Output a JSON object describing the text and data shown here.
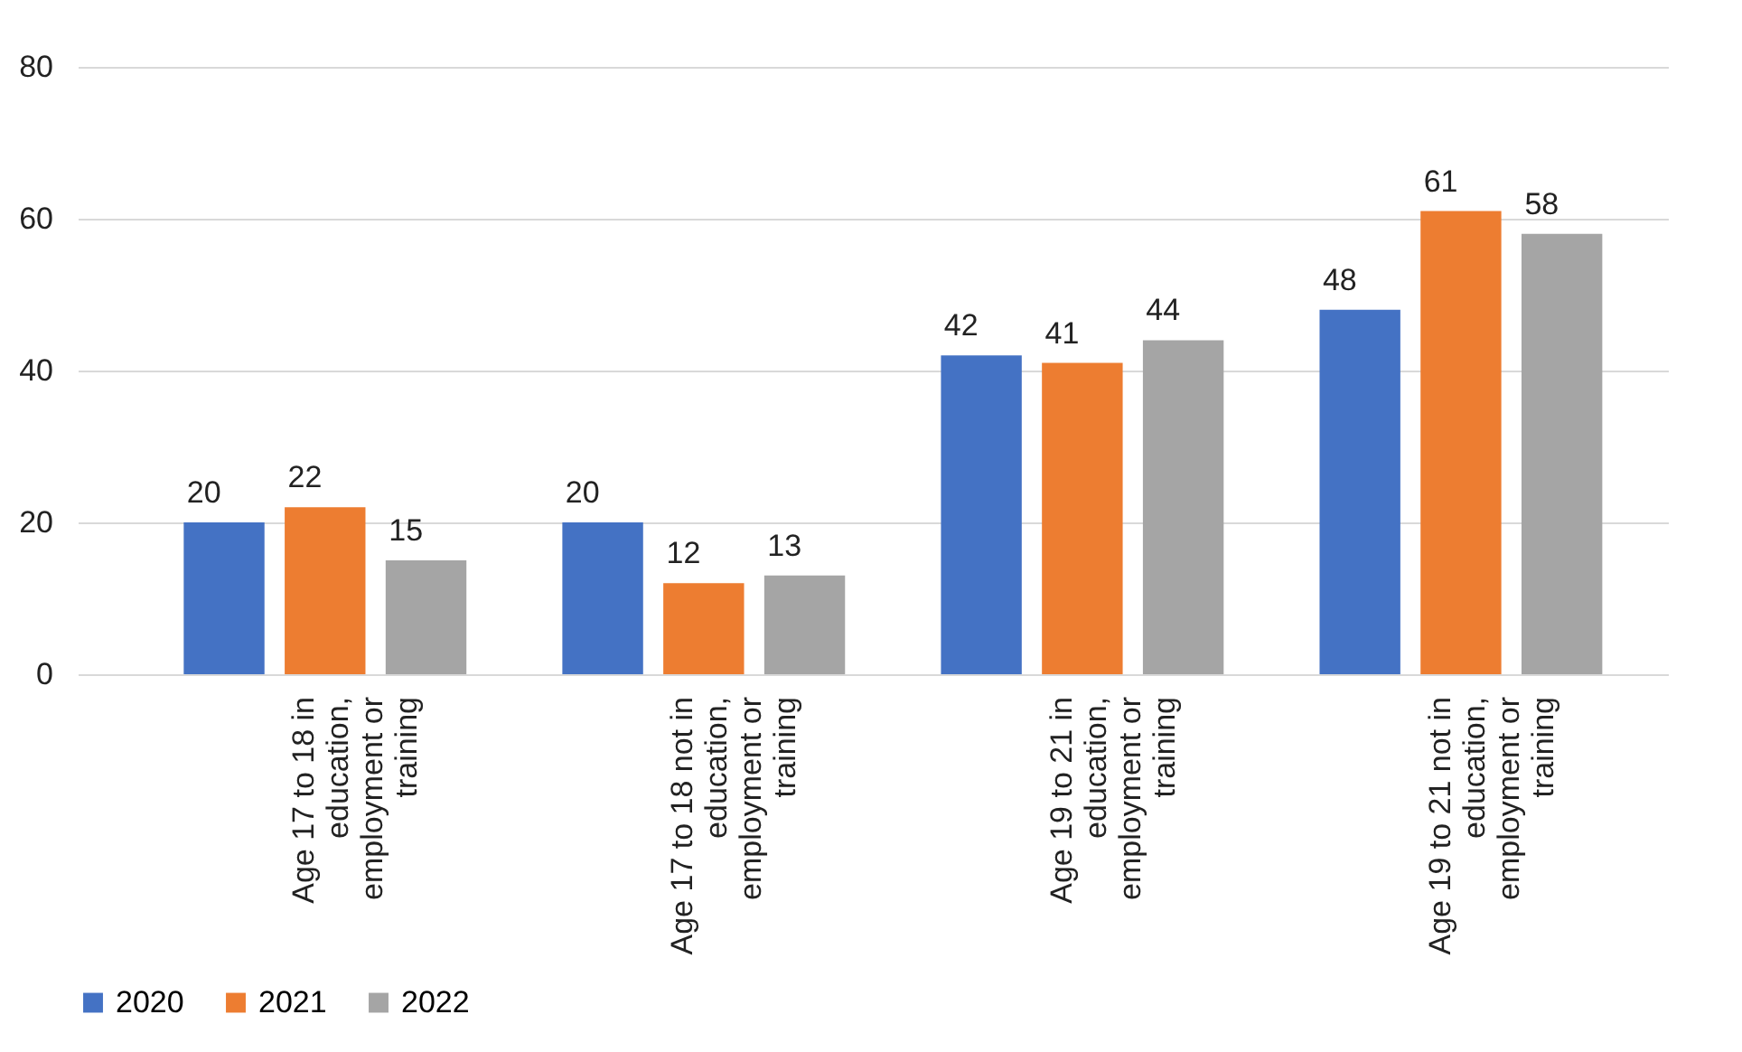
{
  "chart_data": {
    "type": "bar",
    "categories": [
      "Age 17 to 18  in education, employment or training",
      "Age 17 to 18 not in education, employment or training",
      "Age 19 to 21 in education, employment or training",
      "Age 19 to 21 not in education, employment or training"
    ],
    "series": [
      {
        "name": "2020",
        "color": "#4472c4",
        "values": [
          20,
          20,
          42,
          48
        ]
      },
      {
        "name": "2021",
        "color": "#ed7d31",
        "values": [
          22,
          12,
          41,
          61
        ]
      },
      {
        "name": "2022",
        "color": "#a5a5a5",
        "values": [
          15,
          13,
          44,
          58
        ]
      }
    ],
    "ylim": [
      0,
      80
    ],
    "yticks": [
      0,
      20,
      40,
      60,
      80
    ],
    "grid": "y",
    "legend": "bottom",
    "data_labels": true
  }
}
